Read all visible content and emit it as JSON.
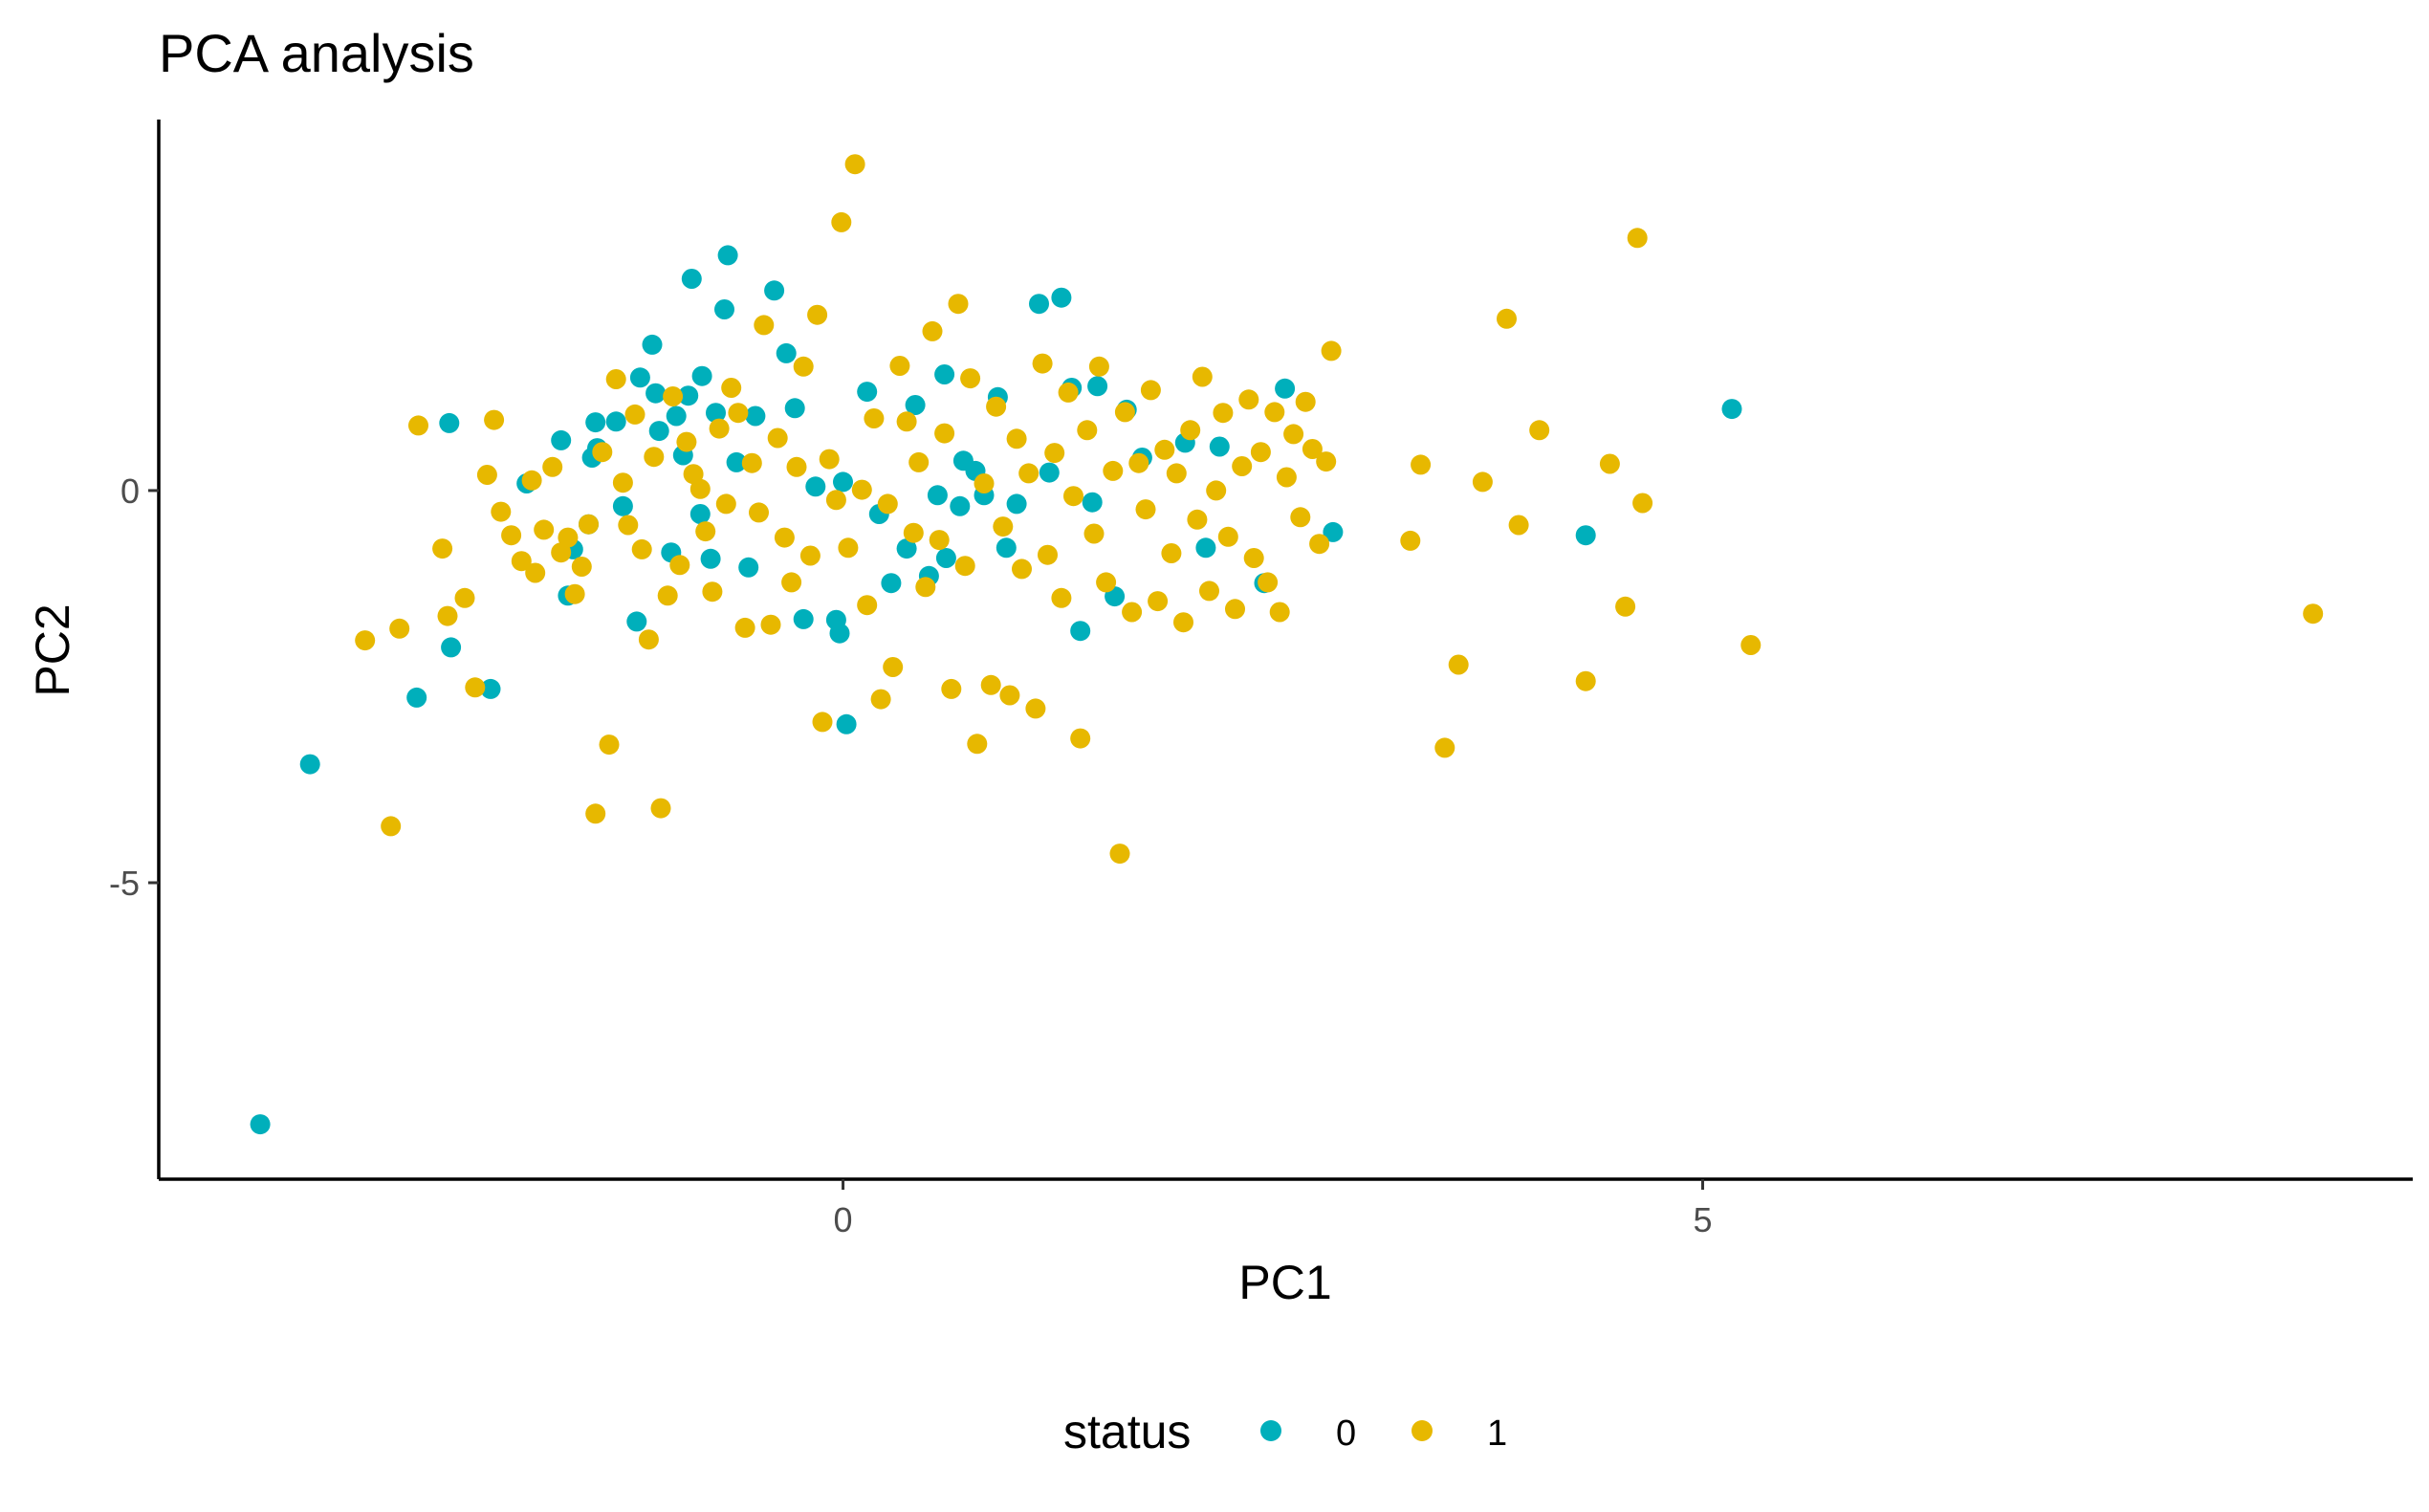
{
  "chart_data": {
    "type": "scatter",
    "title": "PCA analysis",
    "xlabel": "PC1",
    "ylabel": "PC2",
    "xlim": [
      -3.98,
      9.13
    ],
    "ylim": [
      -8.78,
      4.73
    ],
    "xticks": [
      0,
      5
    ],
    "yticks": [
      0,
      -5
    ],
    "xtick_labels": [
      "0",
      "5"
    ],
    "ytick_labels": [
      "0",
      "-5"
    ],
    "grid": false,
    "legend": {
      "title": "status",
      "position": "bottom",
      "entries": [
        "0",
        "1"
      ]
    },
    "colors": {
      "0": "#00AFBB",
      "1": "#E7B800"
    },
    "series": [
      {
        "name": "0",
        "points": [
          [
            -3.39,
            -8.08
          ],
          [
            -3.1,
            -3.49
          ],
          [
            -2.48,
            -2.64
          ],
          [
            -2.29,
            0.86
          ],
          [
            -2.28,
            -2.0
          ],
          [
            -2.05,
            -2.53
          ],
          [
            -1.84,
            0.09
          ],
          [
            -1.64,
            0.64
          ],
          [
            -1.6,
            -1.34
          ],
          [
            -1.57,
            -0.75
          ],
          [
            -1.48,
            -0.43
          ],
          [
            -1.46,
            0.42
          ],
          [
            -1.44,
            0.87
          ],
          [
            -1.43,
            0.54
          ],
          [
            -1.32,
            0.88
          ],
          [
            -1.28,
            -0.2
          ],
          [
            -1.2,
            -1.67
          ],
          [
            -1.18,
            1.44
          ],
          [
            -1.11,
            1.86
          ],
          [
            -1.09,
            1.24
          ],
          [
            -1.07,
            0.76
          ],
          [
            -1.0,
            -0.79
          ],
          [
            -0.97,
            0.95
          ],
          [
            -0.93,
            0.45
          ],
          [
            -0.9,
            1.21
          ],
          [
            -0.88,
            2.7
          ],
          [
            -0.83,
            -0.3
          ],
          [
            -0.82,
            1.46
          ],
          [
            -0.77,
            -0.87
          ],
          [
            -0.74,
            0.99
          ],
          [
            -0.69,
            2.31
          ],
          [
            -0.67,
            3.0
          ],
          [
            -0.62,
            0.36
          ],
          [
            -0.55,
            -0.98
          ],
          [
            -0.51,
            0.95
          ],
          [
            -0.4,
            2.55
          ],
          [
            -0.33,
            1.75
          ],
          [
            -0.28,
            1.05
          ],
          [
            -0.23,
            -1.64
          ],
          [
            -0.16,
            0.05
          ],
          [
            -0.02,
            -1.82
          ],
          [
            -0.04,
            -1.65
          ],
          [
            0.0,
            0.11
          ],
          [
            0.02,
            -2.98
          ],
          [
            0.14,
            1.26
          ],
          [
            0.21,
            -0.3
          ],
          [
            0.28,
            -1.18
          ],
          [
            0.37,
            -0.74
          ],
          [
            0.42,
            1.09
          ],
          [
            0.5,
            -1.09
          ],
          [
            0.55,
            -0.06
          ],
          [
            0.59,
            1.48
          ],
          [
            0.6,
            -0.86
          ],
          [
            0.68,
            -0.2
          ],
          [
            0.7,
            0.38
          ],
          [
            0.77,
            0.25
          ],
          [
            0.82,
            -0.06
          ],
          [
            0.9,
            1.19
          ],
          [
            0.95,
            -0.73
          ],
          [
            1.01,
            -0.17
          ],
          [
            1.14,
            2.38
          ],
          [
            1.2,
            0.23
          ],
          [
            1.27,
            2.46
          ],
          [
            1.33,
            1.31
          ],
          [
            1.38,
            -1.79
          ],
          [
            1.45,
            -0.15
          ],
          [
            1.48,
            1.33
          ],
          [
            1.58,
            -1.35
          ],
          [
            1.65,
            1.03
          ],
          [
            1.74,
            0.42
          ],
          [
            1.99,
            0.61
          ],
          [
            2.11,
            -0.73
          ],
          [
            2.19,
            0.56
          ],
          [
            2.45,
            -1.18
          ],
          [
            2.57,
            1.3
          ],
          [
            2.85,
            -0.53
          ],
          [
            4.32,
            -0.57
          ],
          [
            5.17,
            1.04
          ]
        ]
      },
      {
        "name": "1",
        "points": [
          [
            -2.78,
            -1.91
          ],
          [
            -2.63,
            -4.28
          ],
          [
            -2.58,
            -1.76
          ],
          [
            -2.47,
            0.83
          ],
          [
            -2.33,
            -0.74
          ],
          [
            -2.3,
            -1.6
          ],
          [
            -2.2,
            -1.37
          ],
          [
            -2.14,
            -2.51
          ],
          [
            -2.07,
            0.2
          ],
          [
            -2.03,
            0.9
          ],
          [
            -1.99,
            -0.27
          ],
          [
            -1.93,
            -0.57
          ],
          [
            -1.87,
            -0.9
          ],
          [
            -1.81,
            0.13
          ],
          [
            -1.79,
            -1.05
          ],
          [
            -1.74,
            -0.5
          ],
          [
            -1.69,
            0.3
          ],
          [
            -1.64,
            -0.79
          ],
          [
            -1.6,
            -0.6
          ],
          [
            -1.56,
            -1.32
          ],
          [
            -1.52,
            -0.97
          ],
          [
            -1.48,
            -0.43
          ],
          [
            -1.44,
            -4.12
          ],
          [
            -1.4,
            0.49
          ],
          [
            -1.36,
            -3.24
          ],
          [
            -1.32,
            1.42
          ],
          [
            -1.28,
            0.1
          ],
          [
            -1.25,
            -0.44
          ],
          [
            -1.21,
            0.97
          ],
          [
            -1.17,
            -0.75
          ],
          [
            -1.13,
            -1.9
          ],
          [
            -1.1,
            0.43
          ],
          [
            -1.06,
            -4.05
          ],
          [
            -1.02,
            -1.34
          ],
          [
            -0.99,
            1.2
          ],
          [
            -0.95,
            -0.95
          ],
          [
            -0.91,
            0.62
          ],
          [
            -0.87,
            0.21
          ],
          [
            -0.83,
            0.02
          ],
          [
            -0.8,
            -0.52
          ],
          [
            -0.76,
            -1.29
          ],
          [
            -0.72,
            0.79
          ],
          [
            -0.68,
            -0.17
          ],
          [
            -0.65,
            1.31
          ],
          [
            -0.61,
            0.99
          ],
          [
            -0.57,
            -1.75
          ],
          [
            -0.53,
            0.35
          ],
          [
            -0.49,
            -0.28
          ],
          [
            -0.46,
            2.11
          ],
          [
            -0.42,
            -1.71
          ],
          [
            -0.38,
            0.67
          ],
          [
            -0.34,
            -0.6
          ],
          [
            -0.3,
            -1.17
          ],
          [
            -0.27,
            0.3
          ],
          [
            -0.23,
            1.58
          ],
          [
            -0.19,
            -0.83
          ],
          [
            -0.15,
            2.24
          ],
          [
            -0.12,
            -2.95
          ],
          [
            -0.08,
            0.4
          ],
          [
            -0.04,
            -0.12
          ],
          [
            -0.01,
            3.42
          ],
          [
            0.03,
            -0.73
          ],
          [
            0.07,
            4.16
          ],
          [
            0.11,
            0.01
          ],
          [
            0.14,
            -1.46
          ],
          [
            0.18,
            0.92
          ],
          [
            0.22,
            -2.66
          ],
          [
            0.26,
            -0.17
          ],
          [
            0.29,
            -2.25
          ],
          [
            0.33,
            1.59
          ],
          [
            0.37,
            0.88
          ],
          [
            0.41,
            -0.54
          ],
          [
            0.44,
            0.36
          ],
          [
            0.48,
            -1.23
          ],
          [
            0.52,
            2.03
          ],
          [
            0.56,
            -0.63
          ],
          [
            0.59,
            0.73
          ],
          [
            0.63,
            -2.53
          ],
          [
            0.67,
            2.38
          ],
          [
            0.71,
            -0.96
          ],
          [
            0.74,
            1.43
          ],
          [
            0.78,
            -3.23
          ],
          [
            0.82,
            0.09
          ],
          [
            0.86,
            -2.48
          ],
          [
            0.89,
            1.07
          ],
          [
            0.93,
            -0.46
          ],
          [
            0.97,
            -2.61
          ],
          [
            1.01,
            0.66
          ],
          [
            1.04,
            -1.0
          ],
          [
            1.08,
            0.22
          ],
          [
            1.12,
            -2.78
          ],
          [
            1.16,
            1.62
          ],
          [
            1.19,
            -0.82
          ],
          [
            1.23,
            0.48
          ],
          [
            1.27,
            -1.37
          ],
          [
            1.31,
            1.25
          ],
          [
            1.34,
            -0.07
          ],
          [
            1.38,
            -3.16
          ],
          [
            1.42,
            0.77
          ],
          [
            1.46,
            -0.55
          ],
          [
            1.49,
            1.58
          ],
          [
            1.53,
            -1.17
          ],
          [
            1.57,
            0.25
          ],
          [
            1.61,
            -4.63
          ],
          [
            1.64,
            1.0
          ],
          [
            1.68,
            -1.55
          ],
          [
            1.72,
            0.35
          ],
          [
            1.76,
            -0.24
          ],
          [
            1.79,
            1.28
          ],
          [
            1.83,
            -1.41
          ],
          [
            1.87,
            0.52
          ],
          [
            1.91,
            -0.8
          ],
          [
            1.94,
            0.22
          ],
          [
            1.98,
            -1.68
          ],
          [
            2.02,
            0.77
          ],
          [
            2.06,
            -0.37
          ],
          [
            2.09,
            1.45
          ],
          [
            2.13,
            -1.28
          ],
          [
            2.17,
            0.0
          ],
          [
            2.21,
            0.99
          ],
          [
            2.24,
            -0.59
          ],
          [
            2.28,
            -1.51
          ],
          [
            2.32,
            0.31
          ],
          [
            2.36,
            1.16
          ],
          [
            2.39,
            -0.86
          ],
          [
            2.43,
            0.49
          ],
          [
            2.47,
            -1.17
          ],
          [
            2.51,
            1.0
          ],
          [
            2.54,
            -1.55
          ],
          [
            2.58,
            0.17
          ],
          [
            2.62,
            0.72
          ],
          [
            2.66,
            -0.34
          ],
          [
            2.69,
            1.13
          ],
          [
            2.73,
            0.53
          ],
          [
            2.77,
            -0.68
          ],
          [
            2.81,
            0.37
          ],
          [
            2.84,
            1.78
          ],
          [
            3.3,
            -0.64
          ],
          [
            3.36,
            0.33
          ],
          [
            3.5,
            -3.28
          ],
          [
            3.58,
            -2.22
          ],
          [
            3.72,
            0.11
          ],
          [
            3.86,
            2.19
          ],
          [
            3.93,
            -0.44
          ],
          [
            4.05,
            0.77
          ],
          [
            4.32,
            -2.43
          ],
          [
            4.46,
            0.34
          ],
          [
            4.55,
            -1.48
          ],
          [
            4.62,
            3.22
          ],
          [
            4.65,
            -0.16
          ],
          [
            5.28,
            -1.97
          ],
          [
            8.55,
            -1.57
          ]
        ]
      }
    ]
  }
}
